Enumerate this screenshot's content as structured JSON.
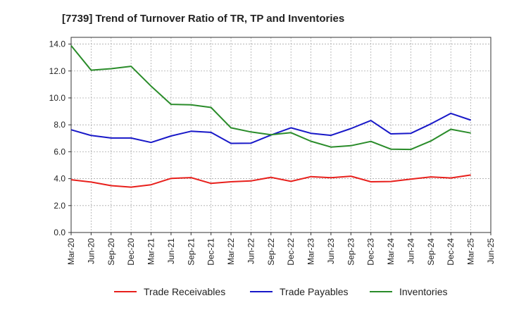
{
  "chart_data": {
    "type": "line",
    "title": "[7739]  Trend of Turnover Ratio of TR, TP and Inventories",
    "xlabel": "",
    "ylabel": "",
    "categories": [
      "Mar-20",
      "Jun-20",
      "Sep-20",
      "Dec-20",
      "Mar-21",
      "Jun-21",
      "Sep-21",
      "Dec-21",
      "Mar-22",
      "Jun-22",
      "Sep-22",
      "Dec-22",
      "Mar-23",
      "Jun-23",
      "Sep-23",
      "Dec-23",
      "Mar-24",
      "Jun-24",
      "Sep-24",
      "Dec-24",
      "Mar-25",
      "Jun-25"
    ],
    "ylim": [
      0,
      14.5
    ],
    "yticks": [
      "0.0",
      "2.0",
      "4.0",
      "6.0",
      "8.0",
      "10.0",
      "12.0",
      "14.0"
    ],
    "grid": true,
    "legend_position": "bottom",
    "series": [
      {
        "name": "Trade Receivables",
        "color": "#e8201c",
        "values": [
          3.92,
          3.75,
          3.48,
          3.37,
          3.55,
          4.02,
          4.08,
          3.65,
          3.77,
          3.83,
          4.1,
          3.8,
          4.15,
          4.07,
          4.18,
          3.77,
          3.79,
          3.97,
          4.13,
          4.05,
          4.27,
          null
        ]
      },
      {
        "name": "Trade Payables",
        "color": "#1818c8",
        "values": [
          7.63,
          7.21,
          7.02,
          7.02,
          6.69,
          7.17,
          7.52,
          7.44,
          6.62,
          6.64,
          7.24,
          7.78,
          7.37,
          7.22,
          7.72,
          8.32,
          7.33,
          7.37,
          8.07,
          8.85,
          8.35,
          null
        ]
      },
      {
        "name": "Inventories",
        "color": "#2a8c2a",
        "values": [
          13.88,
          12.06,
          12.17,
          12.35,
          10.88,
          9.52,
          9.49,
          9.29,
          7.78,
          7.47,
          7.26,
          7.42,
          6.78,
          6.35,
          6.45,
          6.77,
          6.19,
          6.17,
          6.8,
          7.67,
          7.39,
          null
        ]
      }
    ]
  }
}
